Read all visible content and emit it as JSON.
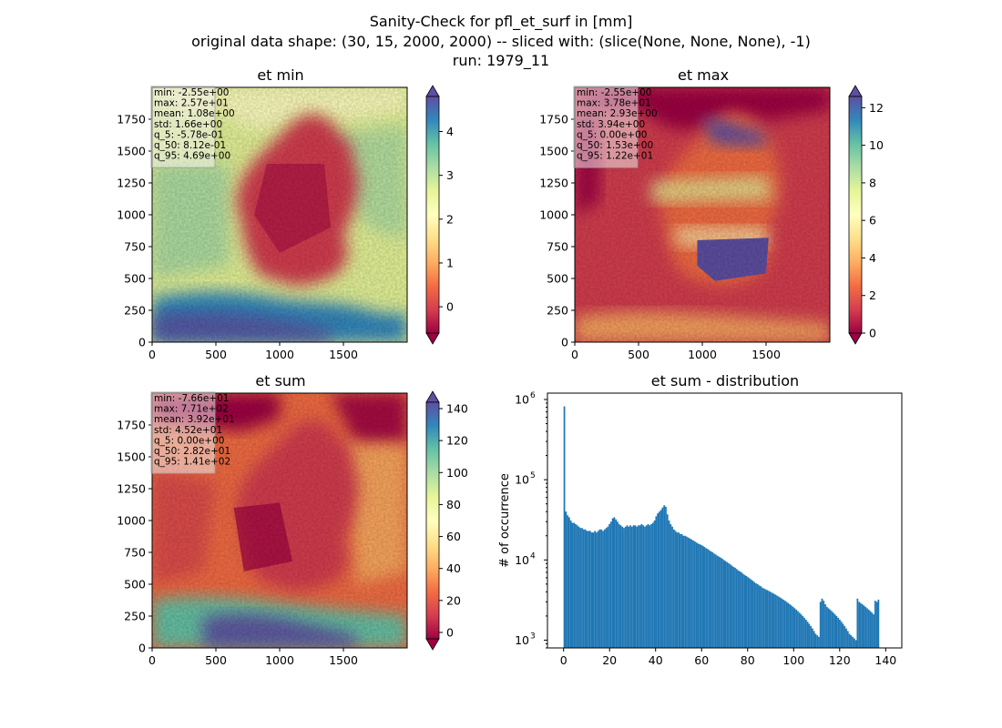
{
  "suptitle": [
    "Sanity-Check for pfl_et_surf in [mm]",
    "original data shape: (30, 15, 2000, 2000) -- sliced with: (slice(None, None, None), -1)",
    "run: 1979_11"
  ],
  "colors": {
    "spectral": [
      "#9e0142",
      "#d53e4f",
      "#f46d43",
      "#fdae61",
      "#fee08b",
      "#ffffbf",
      "#e6f598",
      "#abdda4",
      "#66c2a5",
      "#3288bd",
      "#5e4fa2"
    ],
    "hist_bar": "#1f77b4",
    "stats_box_bg": "#f5f5f5"
  },
  "chart_data": [
    {
      "type": "heatmap",
      "title": "et min",
      "colormap": "Spectral",
      "x_ticks": [
        "0",
        "500",
        "1000",
        "1500"
      ],
      "y_ticks": [
        "0",
        "250",
        "500",
        "750",
        "1000",
        "1250",
        "1500",
        "1750"
      ],
      "xlim": [
        0,
        2000
      ],
      "ylim": [
        0,
        2000
      ],
      "colorbar": {
        "ticks": [
          "0",
          "1",
          "2",
          "3",
          "4"
        ],
        "range": [
          -0.6,
          4.8
        ],
        "extend": "both"
      },
      "stats": [
        "min: -2.55e+00",
        "max: 2.57e+01",
        "mean: 1.08e+00",
        "std: 1.66e+00",
        "q_5: -5.78e-01",
        "q_50: 8.12e-01",
        "q_95: 4.69e+00"
      ]
    },
    {
      "type": "heatmap",
      "title": "et max",
      "colormap": "Spectral",
      "x_ticks": [
        "0",
        "500",
        "1000",
        "1500"
      ],
      "y_ticks": [
        "0",
        "250",
        "500",
        "750",
        "1000",
        "1250",
        "1500",
        "1750"
      ],
      "xlim": [
        0,
        2000
      ],
      "ylim": [
        0,
        2000
      ],
      "colorbar": {
        "ticks": [
          "0",
          "2",
          "4",
          "6",
          "8",
          "10",
          "12"
        ],
        "range": [
          0,
          12.6
        ],
        "extend": "both"
      },
      "stats": [
        "min: -2.55e+00",
        "max: 3.78e+01",
        "mean: 2.93e+00",
        "std: 3.94e+00",
        "q_5: 0.00e+00",
        "q_50: 1.53e+00",
        "q_95: 1.22e+01"
      ]
    },
    {
      "type": "heatmap",
      "title": "et sum",
      "colormap": "Spectral",
      "x_ticks": [
        "0",
        "500",
        "1000",
        "1500"
      ],
      "y_ticks": [
        "0",
        "250",
        "500",
        "750",
        "1000",
        "1250",
        "1500",
        "1750"
      ],
      "xlim": [
        0,
        2000
      ],
      "ylim": [
        0,
        2000
      ],
      "colorbar": {
        "ticks": [
          "0",
          "20",
          "40",
          "60",
          "80",
          "100",
          "120",
          "140"
        ],
        "range": [
          -4,
          144
        ],
        "extend": "both"
      },
      "stats": [
        "min: -7.66e+01",
        "max: 7.71e+02",
        "mean: 3.92e+01",
        "std: 4.52e+01",
        "q_5: 0.00e+00",
        "q_50: 2.82e+01",
        "q_95: 1.41e+02"
      ]
    },
    {
      "type": "bar",
      "title": "et sum - distribution",
      "ylabel": "# of occurrence",
      "yscale": "log",
      "xlim": [
        -7,
        147
      ],
      "ylim": [
        800,
        1200000
      ],
      "x_ticks": [
        "0",
        "20",
        "40",
        "60",
        "80",
        "100",
        "120",
        "140"
      ],
      "y_ticks": [
        {
          "base": "10",
          "exp": "3",
          "value": 1000
        },
        {
          "base": "10",
          "exp": "4",
          "value": 10000
        },
        {
          "base": "10",
          "exp": "5",
          "value": 100000
        },
        {
          "base": "10",
          "exp": "6",
          "value": 1000000
        }
      ],
      "bin_start": 0,
      "bin_width": 0.7,
      "values": [
        820000,
        40000,
        36000,
        34000,
        31000,
        29000,
        29000,
        28000,
        27000,
        26000,
        25000,
        25000,
        24000,
        24000,
        23000,
        23000,
        23000,
        22000,
        22000,
        23000,
        22000,
        23000,
        24000,
        24000,
        23000,
        24000,
        25000,
        26000,
        28000,
        30000,
        33000,
        34000,
        32000,
        30000,
        28000,
        27000,
        26000,
        25000,
        26000,
        27000,
        26000,
        27000,
        26000,
        27000,
        27000,
        26000,
        27000,
        27000,
        28000,
        27000,
        26000,
        27000,
        28000,
        27000,
        28000,
        29000,
        31000,
        35000,
        38000,
        40000,
        42000,
        45000,
        48000,
        46000,
        37000,
        31000,
        28000,
        26000,
        24000,
        23000,
        22000,
        22000,
        21000,
        21000,
        20000,
        20000,
        19500,
        19000,
        18500,
        18000,
        17500,
        17000,
        16500,
        16000,
        15700,
        15300,
        15000,
        14500,
        14000,
        13700,
        13200,
        12800,
        12500,
        12000,
        11700,
        11300,
        11000,
        10700,
        10400,
        10000,
        9700,
        9400,
        9100,
        8800,
        8500,
        8200,
        8000,
        7700,
        7400,
        7200,
        7000,
        6700,
        6500,
        6300,
        6100,
        5900,
        5700,
        5500,
        5300,
        5100,
        5000,
        4800,
        4700,
        4500,
        4400,
        4300,
        4200,
        4100,
        4000,
        3900,
        3800,
        3700,
        3600,
        3500,
        3400,
        3300,
        3200,
        3100,
        3000,
        2900,
        2800,
        2700,
        2600,
        2500,
        2400,
        2300,
        2200,
        2100,
        2000,
        1900,
        1800,
        1700,
        1600,
        1500,
        1400,
        1300,
        1200,
        1150,
        1100,
        3000,
        3300,
        3100,
        2800,
        2600,
        2500,
        2400,
        2300,
        2200,
        2100,
        2000,
        1900,
        1800,
        1700,
        1600,
        1500,
        1400,
        1300,
        1200,
        1150,
        1100,
        1050,
        1000,
        3300,
        3000,
        2900,
        2800,
        2700,
        2600,
        2500,
        2400,
        2300,
        2200,
        2100,
        3100,
        3000,
        3200
      ]
    }
  ]
}
